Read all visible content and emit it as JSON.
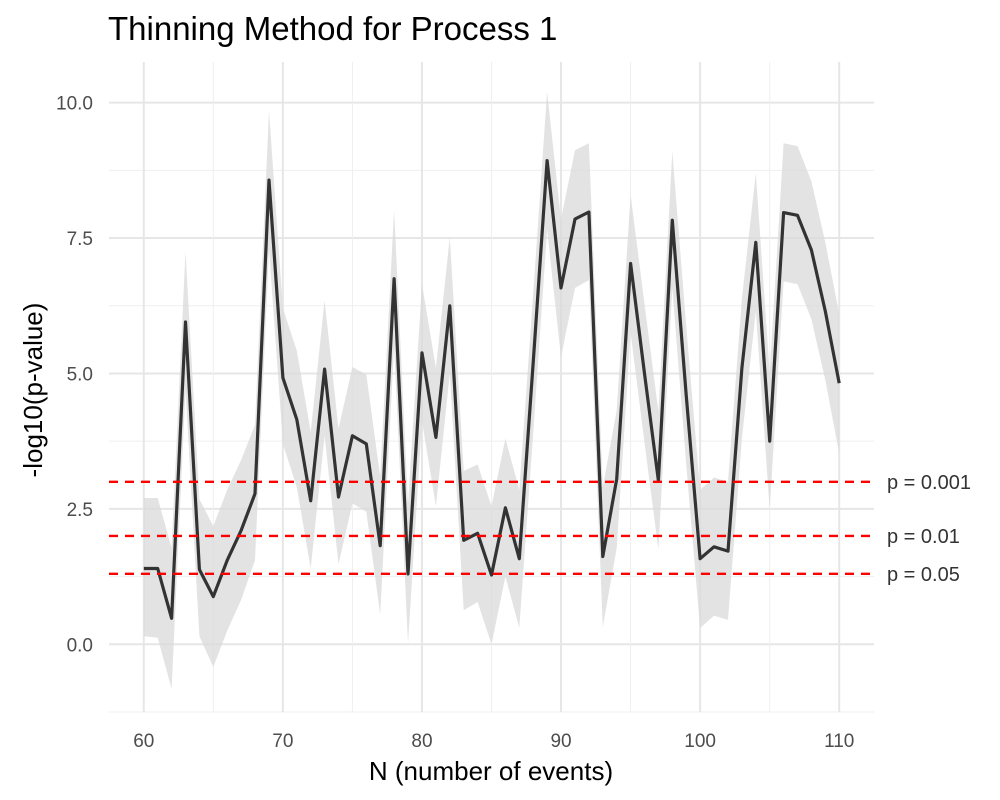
{
  "chart_data": {
    "type": "line",
    "title": "Thinning Method for Process 1",
    "xlabel": "N (number of events)",
    "ylabel": "-log10(p-value)",
    "xlim": [
      57.5,
      112.5
    ],
    "ylim": [
      -1.25,
      10.75
    ],
    "x_ticks": [
      60,
      70,
      80,
      90,
      100,
      110
    ],
    "y_ticks": [
      0.0,
      2.5,
      5.0,
      7.5,
      10.0
    ],
    "x_tick_labels": [
      "60",
      "70",
      "80",
      "90",
      "100",
      "110"
    ],
    "y_tick_labels": [
      "0.0",
      "2.5",
      "5.0",
      "7.5",
      "10.0"
    ],
    "grid": true,
    "line_color": "#333333",
    "band_color": "#d9d9d9",
    "x": [
      60,
      61,
      62,
      63,
      64,
      65,
      66,
      67,
      68,
      69,
      70,
      71,
      72,
      73,
      74,
      75,
      76,
      77,
      78,
      79,
      80,
      81,
      82,
      83,
      84,
      85,
      86,
      87,
      88,
      89,
      90,
      91,
      92,
      93,
      94,
      95,
      96,
      97,
      98,
      99,
      100,
      101,
      102,
      103,
      104,
      105,
      106,
      107,
      108,
      109,
      110
    ],
    "y": [
      1.4,
      1.4,
      0.48,
      5.95,
      1.38,
      0.88,
      1.55,
      2.1,
      2.78,
      8.57,
      4.92,
      4.15,
      2.65,
      5.08,
      2.72,
      3.85,
      3.7,
      1.82,
      6.75,
      1.3,
      5.38,
      3.82,
      6.25,
      1.92,
      2.05,
      1.28,
      2.52,
      1.58,
      5.2,
      8.93,
      6.58,
      7.85,
      7.98,
      1.62,
      3.05,
      7.03,
      5.0,
      3.02,
      7.83,
      4.6,
      1.58,
      1.8,
      1.72,
      5.1,
      7.42,
      3.75,
      7.97,
      7.92,
      7.28,
      6.15,
      4.82
    ],
    "lower": [
      0.15,
      0.12,
      -0.82,
      4.7,
      0.15,
      -0.42,
      0.25,
      0.82,
      1.55,
      7.3,
      3.7,
      2.9,
      1.4,
      3.85,
      1.48,
      2.6,
      2.45,
      0.55,
      5.5,
      0.02,
      4.12,
      2.55,
      5.0,
      0.63,
      0.78,
      0.0,
      1.25,
      0.3,
      3.9,
      7.65,
      5.3,
      6.58,
      6.72,
      0.32,
      1.78,
      5.75,
      3.72,
      1.75,
      6.58,
      3.32,
      0.3,
      0.53,
      0.45,
      3.8,
      6.15,
      2.48,
      6.7,
      6.65,
      6.0,
      4.88,
      3.52
    ],
    "upper": [
      2.7,
      2.7,
      1.78,
      7.25,
      2.68,
      2.18,
      2.85,
      3.4,
      4.05,
      9.85,
      6.2,
      5.42,
      3.92,
      6.35,
      3.98,
      5.12,
      4.98,
      3.1,
      8.02,
      2.6,
      6.65,
      5.1,
      7.52,
      3.2,
      3.32,
      2.55,
      3.8,
      2.85,
      6.48,
      10.2,
      7.85,
      9.12,
      9.25,
      2.9,
      4.32,
      8.3,
      6.28,
      4.3,
      9.1,
      5.88,
      2.85,
      3.08,
      3.0,
      6.38,
      8.7,
      5.02,
      9.25,
      9.2,
      8.55,
      7.42,
      6.1
    ],
    "reference_lines": [
      {
        "label": "p = 0.001",
        "y": 3.0,
        "color": "#ff0000"
      },
      {
        "label": "p = 0.01",
        "y": 2.0,
        "color": "#ff0000"
      },
      {
        "label": "p = 0.05",
        "y": 1.301,
        "color": "#ff0000"
      }
    ]
  }
}
